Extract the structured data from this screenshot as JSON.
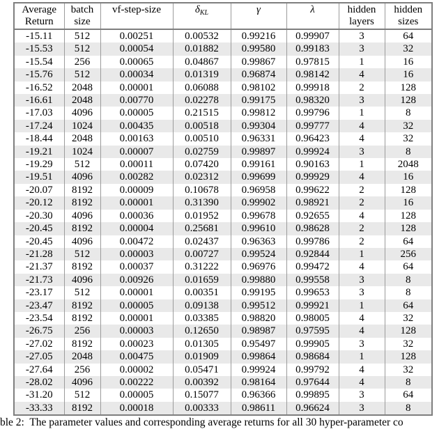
{
  "table": {
    "column_headers": [
      {
        "id": "average-return",
        "lines": [
          "Average",
          "Return"
        ]
      },
      {
        "id": "batch-size",
        "lines": [
          "batch",
          "size"
        ]
      },
      {
        "id": "vf-step-size",
        "lines": [
          "vf-step-size"
        ]
      },
      {
        "id": "delta-kl",
        "symbol": "δ",
        "subscript": "KL"
      },
      {
        "id": "gamma",
        "symbol": "γ"
      },
      {
        "id": "lambda",
        "symbol": "λ"
      },
      {
        "id": "hidden-layers",
        "lines": [
          "hidden",
          "layers"
        ]
      },
      {
        "id": "hidden-sizes",
        "lines": [
          "hidden",
          "sizes"
        ]
      }
    ],
    "rows": [
      [
        "-15.11",
        "512",
        "0.00251",
        "0.00532",
        "0.99216",
        "0.99907",
        "3",
        "64"
      ],
      [
        "-15.53",
        "512",
        "0.00054",
        "0.01882",
        "0.99580",
        "0.99183",
        "3",
        "32"
      ],
      [
        "-15.54",
        "256",
        "0.00065",
        "0.04867",
        "0.99867",
        "0.97815",
        "1",
        "16"
      ],
      [
        "-15.76",
        "512",
        "0.00034",
        "0.01319",
        "0.96874",
        "0.98142",
        "4",
        "16"
      ],
      [
        "-16.52",
        "2048",
        "0.00001",
        "0.06088",
        "0.98102",
        "0.99918",
        "2",
        "128"
      ],
      [
        "-16.61",
        "2048",
        "0.00770",
        "0.02278",
        "0.99175",
        "0.98320",
        "3",
        "128"
      ],
      [
        "-17.03",
        "4096",
        "0.00005",
        "0.21515",
        "0.99812",
        "0.99796",
        "1",
        "8"
      ],
      [
        "-17.24",
        "1024",
        "0.00435",
        "0.00518",
        "0.99304",
        "0.99777",
        "4",
        "32"
      ],
      [
        "-18.44",
        "2048",
        "0.00163",
        "0.00510",
        "0.96331",
        "0.96423",
        "4",
        "32"
      ],
      [
        "-19.21",
        "1024",
        "0.00007",
        "0.02759",
        "0.99897",
        "0.99924",
        "3",
        "8"
      ],
      [
        "-19.29",
        "512",
        "0.00011",
        "0.07420",
        "0.99161",
        "0.90163",
        "1",
        "2048"
      ],
      [
        "-19.51",
        "4096",
        "0.00282",
        "0.02312",
        "0.99699",
        "0.99929",
        "4",
        "16"
      ],
      [
        "-20.07",
        "8192",
        "0.00009",
        "0.10678",
        "0.96958",
        "0.99622",
        "2",
        "128"
      ],
      [
        "-20.12",
        "8192",
        "0.00001",
        "0.31390",
        "0.99902",
        "0.98921",
        "2",
        "16"
      ],
      [
        "-20.30",
        "4096",
        "0.00036",
        "0.01952",
        "0.99678",
        "0.92655",
        "4",
        "128"
      ],
      [
        "-20.45",
        "8192",
        "0.00004",
        "0.25681",
        "0.99610",
        "0.98628",
        "2",
        "128"
      ],
      [
        "-20.45",
        "4096",
        "0.00472",
        "0.02437",
        "0.96363",
        "0.99786",
        "2",
        "64"
      ],
      [
        "-21.28",
        "512",
        "0.00003",
        "0.00727",
        "0.99524",
        "0.92844",
        "1",
        "256"
      ],
      [
        "-21.37",
        "8192",
        "0.00037",
        "0.31222",
        "0.96976",
        "0.99472",
        "4",
        "64"
      ],
      [
        "-21.73",
        "4096",
        "0.00926",
        "0.01659",
        "0.99880",
        "0.99558",
        "3",
        "8"
      ],
      [
        "-23.17",
        "512",
        "0.00001",
        "0.00351",
        "0.99195",
        "0.99653",
        "3",
        "8"
      ],
      [
        "-23.47",
        "8192",
        "0.00005",
        "0.09138",
        "0.99512",
        "0.99921",
        "1",
        "64"
      ],
      [
        "-23.54",
        "8192",
        "0.00001",
        "0.03385",
        "0.98820",
        "0.98005",
        "4",
        "32"
      ],
      [
        "-26.75",
        "256",
        "0.00003",
        "0.12650",
        "0.98987",
        "0.97595",
        "4",
        "128"
      ],
      [
        "-27.02",
        "8192",
        "0.00023",
        "0.01305",
        "0.95497",
        "0.99905",
        "3",
        "32"
      ],
      [
        "-27.05",
        "2048",
        "0.00475",
        "0.01909",
        "0.99864",
        "0.98684",
        "1",
        "128"
      ],
      [
        "-27.64",
        "256",
        "0.00002",
        "0.05471",
        "0.99924",
        "0.99792",
        "4",
        "32"
      ],
      [
        "-28.02",
        "4096",
        "0.00222",
        "0.00392",
        "0.98164",
        "0.97644",
        "4",
        "8"
      ],
      [
        "-31.20",
        "512",
        "0.00005",
        "0.15077",
        "0.96366",
        "0.99895",
        "3",
        "64"
      ],
      [
        "-33.33",
        "8192",
        "0.00018",
        "0.00333",
        "0.98611",
        "0.96624",
        "3",
        "8"
      ]
    ]
  },
  "caption": {
    "visible_text": "ble 2:  The parameter values and corresponding average returns for all 30 hyper-parameter co"
  },
  "colors": {
    "row_stripe": "#e9e9e9",
    "grid_border": "#9b9b9b",
    "outer_border": "#7e7e7e",
    "text": "#000000",
    "background": "#ffffff"
  }
}
